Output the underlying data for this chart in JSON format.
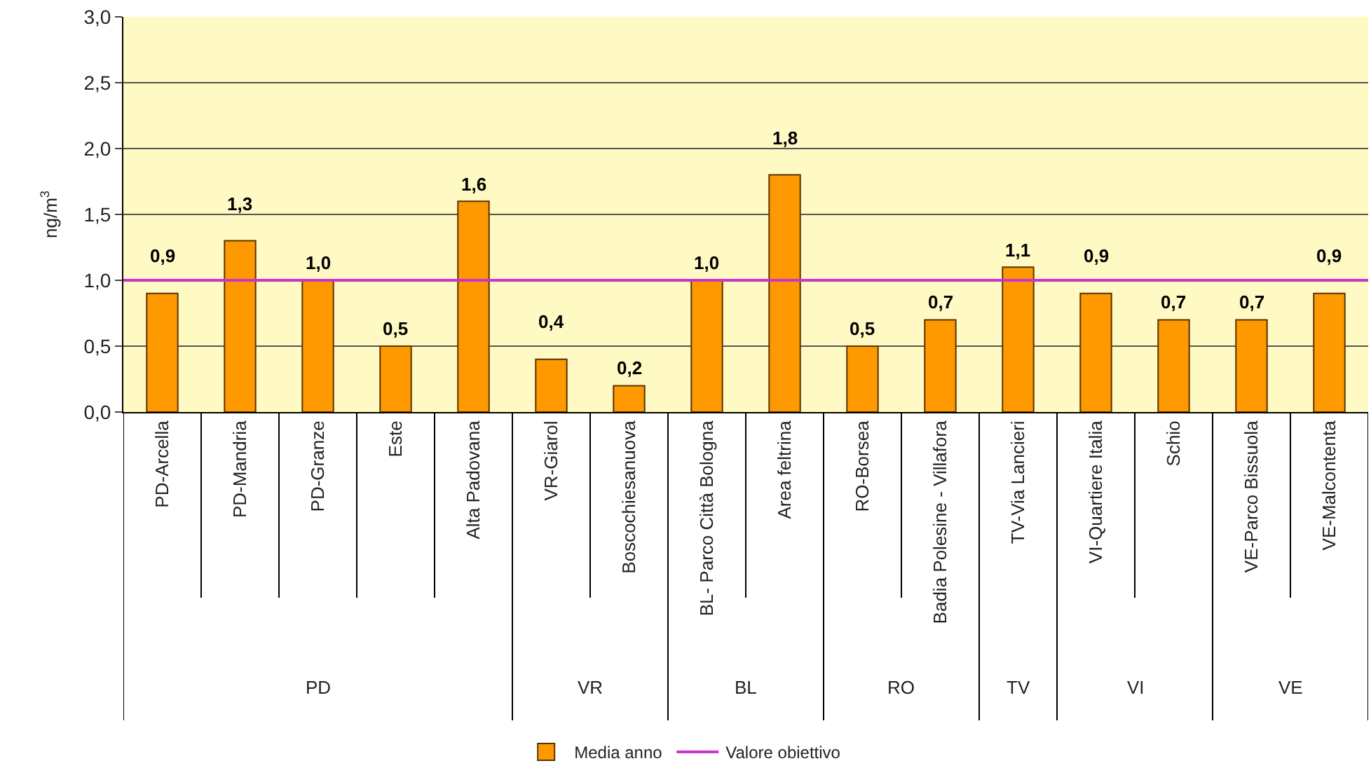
{
  "chart_data": {
    "type": "bar",
    "ylabel": "ng/m$^{3}$",
    "categories": [
      "PD-Arcella",
      "PD-Mandria",
      "PD-Granze",
      "Este",
      "Alta Padovana",
      "VR-Giarol",
      "Boscochiesanuova",
      "BL- Parco Città Bologna",
      "Area feltrina",
      "RO-Borsea",
      "Badia Polesine - Villafora",
      "TV-Via Lancieri",
      "VI-Quartiere Italia",
      "Schio",
      "VE-Parco Bissuola",
      "VE-Malcontenta"
    ],
    "series": [
      {
        "name": "Media anno",
        "color": "#ff9900",
        "values": [
          0.9,
          1.3,
          1.0,
          0.5,
          1.6,
          0.4,
          0.2,
          1.0,
          1.8,
          0.5,
          0.7,
          1.1,
          0.9,
          0.7,
          0.7,
          0.9
        ],
        "value_labels": [
          "0,9",
          "1,3",
          "1,0",
          "0,5",
          "1,6",
          "0,4",
          "0,2",
          "1,0",
          "1,8",
          "0,5",
          "0,7",
          "1,1",
          "0,9",
          "0,7",
          "0,7",
          "0,9"
        ]
      }
    ],
    "ref_lines": [
      {
        "axis": "y",
        "value": 1.0,
        "label": "Valore obiettivo",
        "color": "#cc33cc"
      }
    ],
    "ylim": [
      0,
      3
    ],
    "yticks": [
      {
        "value": 0,
        "label": "0,0"
      },
      {
        "value": 0.5,
        "label": "0,5"
      },
      {
        "value": 1,
        "label": "1,0"
      },
      {
        "value": 1.5,
        "label": "1,5"
      },
      {
        "value": 2,
        "label": "2,0"
      },
      {
        "value": 2.5,
        "label": "2,5"
      },
      {
        "value": 3,
        "label": "3,0"
      }
    ],
    "grid": "y",
    "legend": "bottom",
    "annotations": [
      "PD",
      "VR",
      "BL",
      "RO",
      "TV",
      "VI",
      "VE"
    ]
  }
}
